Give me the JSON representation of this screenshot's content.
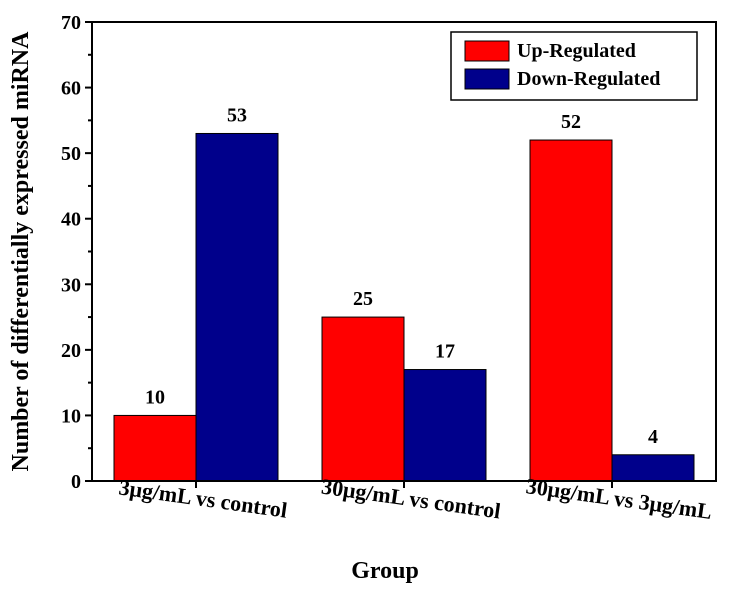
{
  "chart_data": {
    "type": "bar",
    "xlabel": "Group",
    "ylabel": "Number of differentially expressed miRNA",
    "ylim": [
      0,
      70
    ],
    "yticks": [
      0,
      10,
      20,
      30,
      40,
      50,
      60,
      70
    ],
    "categories": [
      "3μg/mL vs control",
      "30μg/mL vs control",
      "30μg/mL vs 3μg/mL"
    ],
    "series": [
      {
        "name": "Up-Regulated",
        "color": "#ff0000",
        "values": [
          10,
          25,
          52
        ]
      },
      {
        "name": "Down-Regulated",
        "color": "#00008b",
        "values": [
          53,
          17,
          4
        ]
      }
    ],
    "legend_position": "top-right",
    "grid": false
  }
}
